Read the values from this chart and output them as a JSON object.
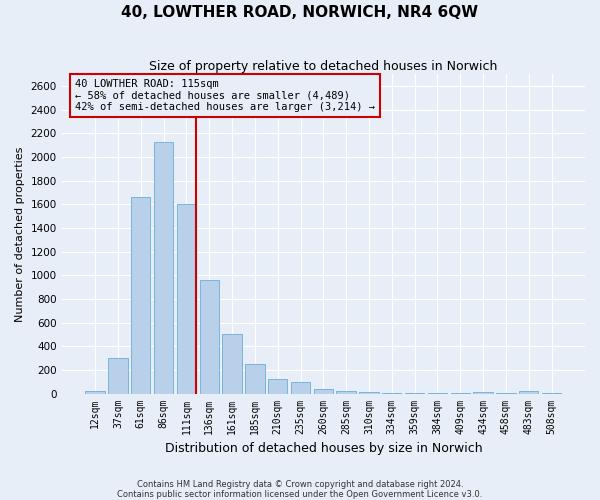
{
  "title": "40, LOWTHER ROAD, NORWICH, NR4 6QW",
  "subtitle": "Size of property relative to detached houses in Norwich",
  "xlabel": "Distribution of detached houses by size in Norwich",
  "ylabel": "Number of detached properties",
  "categories": [
    "12sqm",
    "37sqm",
    "61sqm",
    "86sqm",
    "111sqm",
    "136sqm",
    "161sqm",
    "185sqm",
    "210sqm",
    "235sqm",
    "260sqm",
    "285sqm",
    "310sqm",
    "334sqm",
    "359sqm",
    "384sqm",
    "409sqm",
    "434sqm",
    "458sqm",
    "483sqm",
    "508sqm"
  ],
  "values": [
    22,
    300,
    1660,
    2130,
    1600,
    960,
    500,
    248,
    120,
    100,
    42,
    18,
    10,
    5,
    3,
    2,
    1,
    15,
    1,
    22,
    1
  ],
  "bar_color": "#b8d0ea",
  "bar_edge_color": "#6aaed6",
  "highlight_index": 4,
  "highlight_color": "#cc0000",
  "ylim": [
    0,
    2700
  ],
  "yticks": [
    0,
    200,
    400,
    600,
    800,
    1000,
    1200,
    1400,
    1600,
    1800,
    2000,
    2200,
    2400,
    2600
  ],
  "annotation_title": "40 LOWTHER ROAD: 115sqm",
  "annotation_line1": "← 58% of detached houses are smaller (4,489)",
  "annotation_line2": "42% of semi-detached houses are larger (3,214) →",
  "annotation_box_color": "#cc0000",
  "footer_line1": "Contains HM Land Registry data © Crown copyright and database right 2024.",
  "footer_line2": "Contains public sector information licensed under the Open Government Licence v3.0.",
  "background_color": "#e8eef7",
  "grid_color": "#ffffff",
  "title_fontsize": 11,
  "subtitle_fontsize": 9,
  "ylabel_fontsize": 8,
  "xlabel_fontsize": 9,
  "tick_fontsize": 7,
  "annotation_fontsize": 7.5,
  "footer_fontsize": 6
}
